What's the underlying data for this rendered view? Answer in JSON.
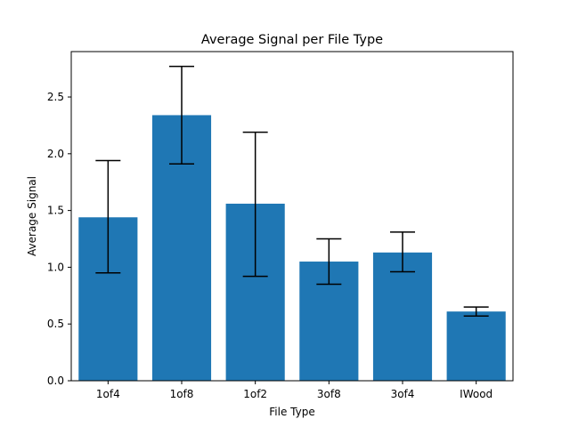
{
  "chart_data": {
    "type": "bar",
    "title": "Average Signal per File Type",
    "xlabel": "File Type",
    "ylabel": "Average Signal",
    "categories": [
      "1of4",
      "1of8",
      "1of2",
      "3of8",
      "3of4",
      "IWood"
    ],
    "values": [
      1.44,
      2.34,
      1.56,
      1.05,
      1.13,
      0.61
    ],
    "error_low": [
      0.95,
      1.91,
      0.92,
      0.85,
      0.96,
      0.57
    ],
    "error_high": [
      1.94,
      2.77,
      2.19,
      1.25,
      1.31,
      0.65
    ],
    "ylim": [
      0,
      2.9
    ],
    "yticks": [
      0.0,
      0.5,
      1.0,
      1.5,
      2.0,
      2.5
    ],
    "ytick_labels": [
      "0.0",
      "0.5",
      "1.0",
      "1.5",
      "2.0",
      "2.5"
    ],
    "grid": false,
    "colors": {
      "bar": "#1f77b4",
      "errorbar": "#000000",
      "axis": "#000000"
    }
  }
}
